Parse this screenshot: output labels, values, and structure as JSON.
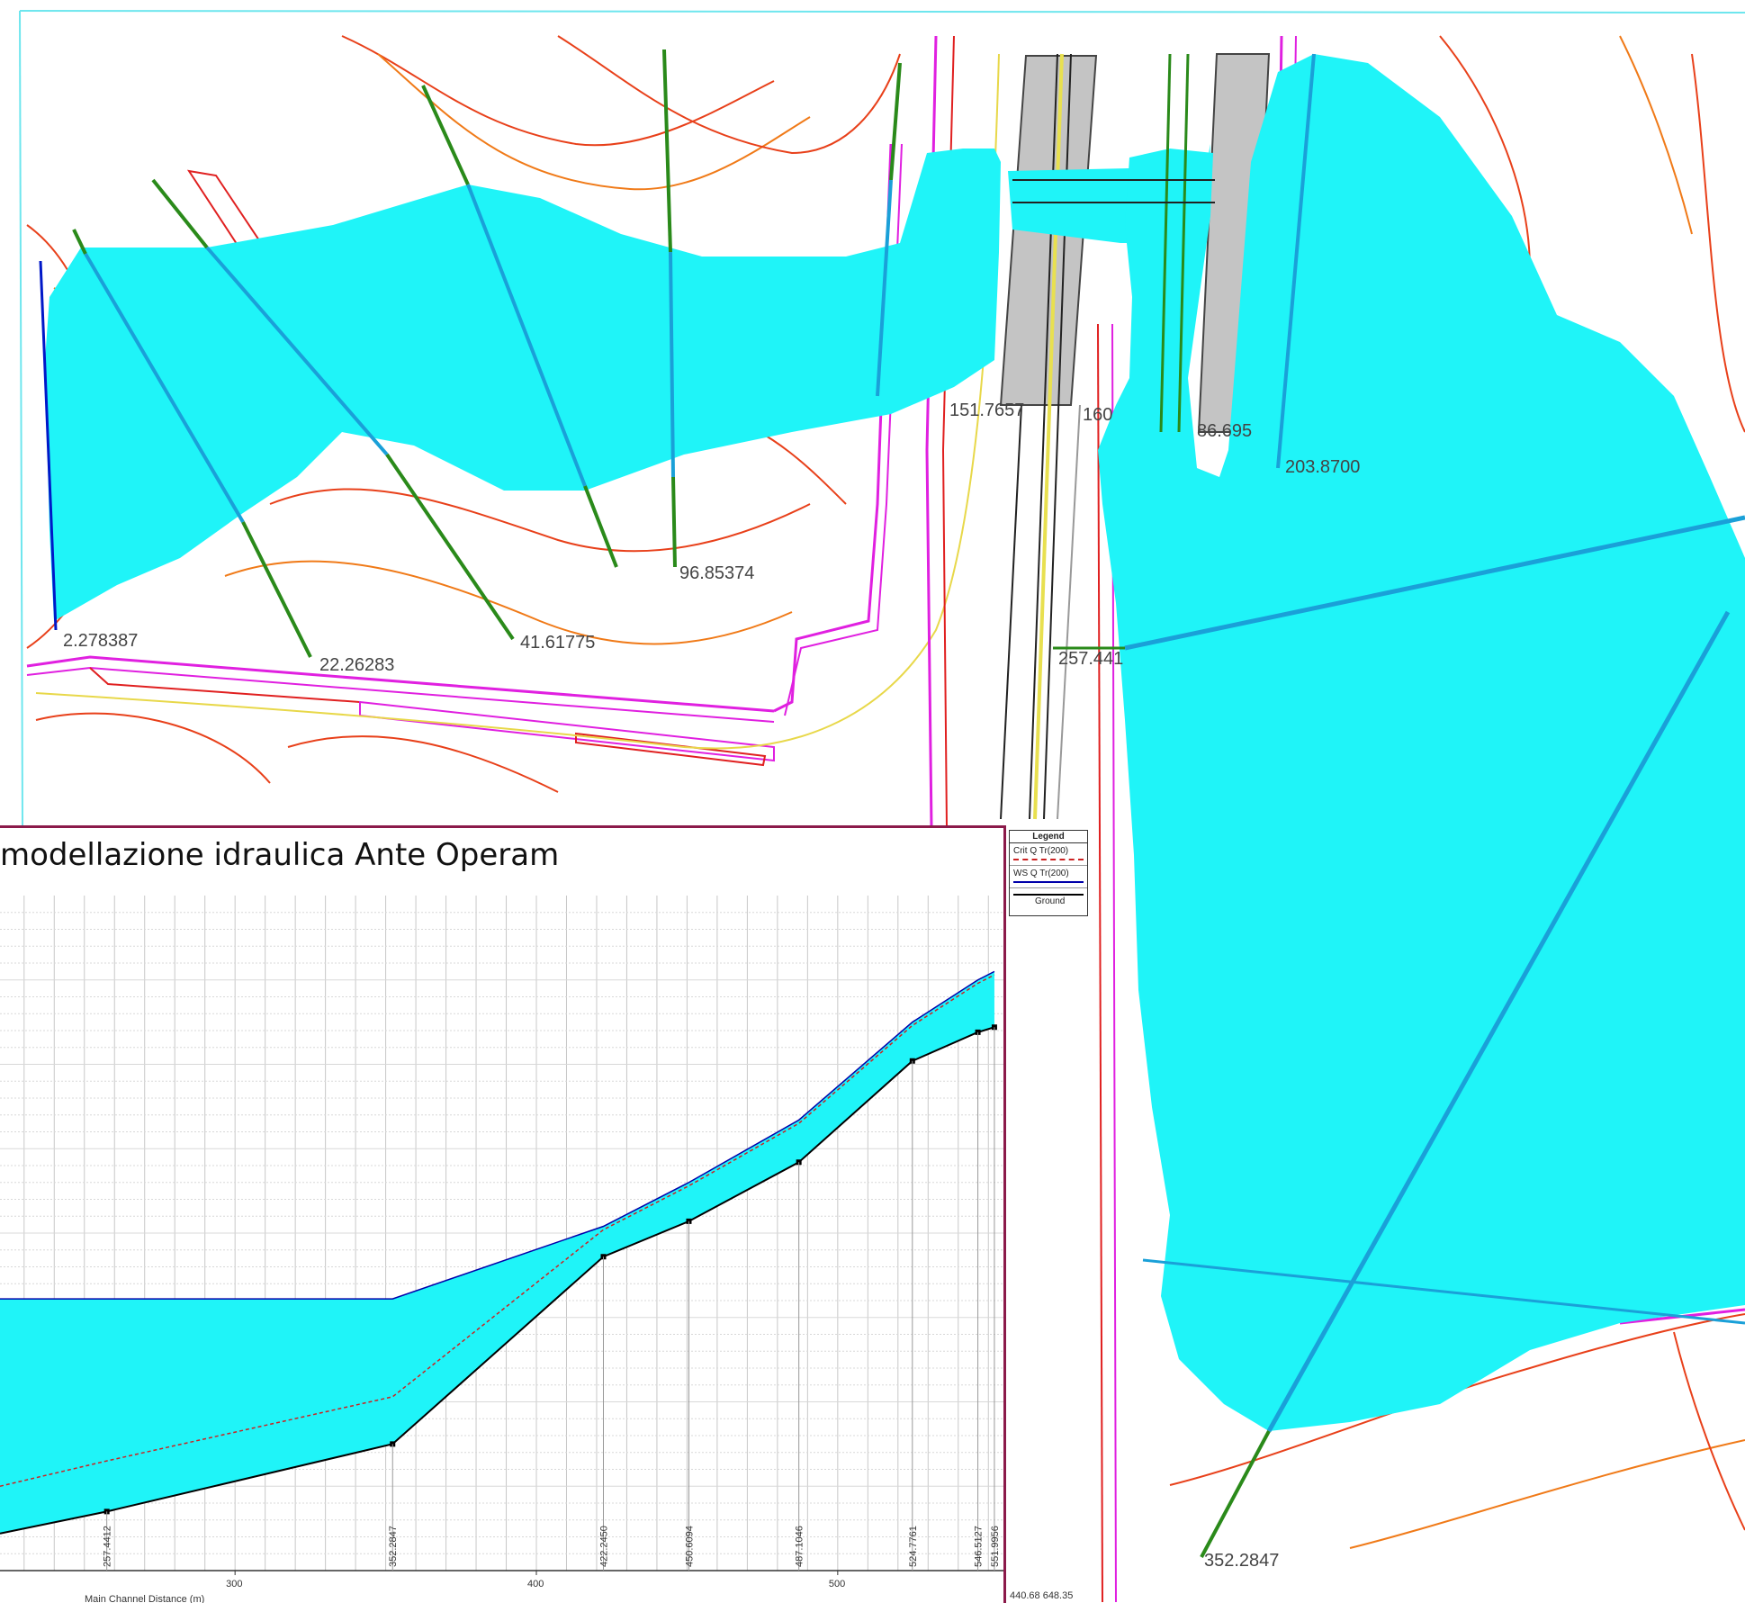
{
  "map": {
    "section_labels": [
      "2.278387",
      "22.26283",
      "41.61775",
      "96.85374",
      "151.7657",
      "160",
      "86.695",
      "203.8700",
      "257.441",
      "352.2847"
    ]
  },
  "profile": {
    "title": "modellazione idraulica Ante Operam",
    "xlabel": "Main Channel Distance (m)",
    "corner_label": "440.68  648.35"
  },
  "legend": {
    "title": "Legend",
    "items": [
      "Crit  Q Tr(200)",
      "WS  Q Tr(200)",
      "Ground"
    ]
  },
  "chart_data": {
    "type": "area",
    "title": "modellazione idraulica Ante Operam",
    "xlabel": "Main Channel Distance (m)",
    "ylabel": "",
    "xlim": [
      222,
      555
    ],
    "x_ticks": [
      300,
      400,
      500
    ],
    "grid": true,
    "legend_position": "top-right",
    "colors": {
      "water": "#1ff4f8",
      "ws_line": "#0000aa",
      "crit": "#cc2222",
      "ground": "#000000"
    },
    "stations": [
      257.4412,
      352.2847,
      422.245,
      450.6094,
      487.1046,
      524.7761,
      546.5127,
      551.9956
    ],
    "station_labels": [
      "257.4412",
      "352.2847",
      "422.2450",
      "450.6094",
      "487.1046",
      "524.7761",
      "546.5127",
      "551.9956"
    ],
    "series": [
      {
        "name": "Ground",
        "x": [
          222,
          257.4412,
          352.2847,
          422.245,
          450.6094,
          487.1046,
          524.7761,
          546.5127,
          551.9956
        ],
        "values": [
          2.2,
          3.5,
          7.5,
          18.6,
          20.7,
          24.2,
          30.2,
          31.9,
          32.2
        ]
      },
      {
        "name": "WS  Q Tr(200)",
        "x": [
          222,
          257.4412,
          352.2847,
          422.245,
          450.6094,
          487.1046,
          524.7761,
          546.5127,
          551.9956
        ],
        "values": [
          16.1,
          16.1,
          16.1,
          20.4,
          23.0,
          26.7,
          32.5,
          35.0,
          35.5
        ]
      },
      {
        "name": "Crit  Q Tr(200)",
        "x": [
          222,
          257.4412,
          352.2847,
          422.245,
          450.6094,
          487.1046,
          524.7761,
          546.5127,
          551.9956
        ],
        "values": [
          5.0,
          6.5,
          10.3,
          20.2,
          22.8,
          26.5,
          32.3,
          34.8,
          35.3
        ]
      }
    ]
  }
}
